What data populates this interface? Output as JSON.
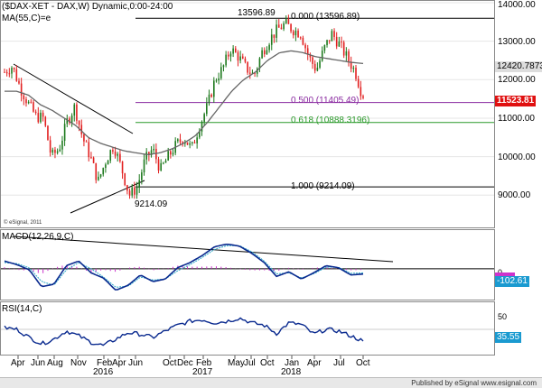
{
  "main": {
    "title": "($DAX-XET - DAX,W) Dynamic,0:00-24:00",
    "ma_label": "MA(55,C)=e",
    "watermark": "© eSignal, 2011",
    "price_tag": "11523.81",
    "ma_tag": "12420.7873",
    "annotations": {
      "high": "13596.89",
      "low": "9214.09",
      "fib0": "0.000 (13596.89)",
      "fib50": "0.500 (11405.49)",
      "fib618": "0.618 (10888.3196)",
      "fib100": "1.000 (9214.09)"
    }
  },
  "macd": {
    "title": "MACD(12,26,9,C)",
    "tag_signal": "0",
    "tag_value": "-102.61",
    "zero_tick": "0"
  },
  "rsi": {
    "title": "RSI(14,C)",
    "tag_value": "35.55",
    "tick_50": "50"
  },
  "footer": "Published by eSignal  www.esignal.com",
  "colors": {
    "up": "#1e7a1e",
    "down": "#e22020",
    "ma": "#666666",
    "macd": "#0a2a8f",
    "signal": "#2aa7c8",
    "hist": "#cc33cc",
    "fib50": "#8a2aa0",
    "fib618": "#2a9a2a",
    "rsi": "#0a2a8f",
    "price_tag_bg": "#e01010",
    "ma_tag_bg": "#dddddd",
    "macd_tag_bg": "#1a9ad0",
    "signal_tag_bg": "#cc33cc",
    "rsi_tag_bg": "#1a9ad0"
  },
  "chart_data": {
    "type": "line",
    "title": "($DAX-XET - DAX,W) Dynamic,0:00-24:00",
    "y_ticks": [
      "14000.00",
      "13000.00",
      "12000.00",
      "11000.00",
      "10000.00",
      "9000.00"
    ],
    "x_ticks": [
      {
        "label": "Apr",
        "year": ""
      },
      {
        "label": "Jun",
        "year": ""
      },
      {
        "label": "Aug",
        "year": ""
      },
      {
        "label": "Nov",
        "year": ""
      },
      {
        "label": "Feb",
        "year": "2016"
      },
      {
        "label": "Apr",
        "year": ""
      },
      {
        "label": "Jun",
        "year": ""
      },
      {
        "label": "Oct",
        "year": ""
      },
      {
        "label": "Dec",
        "year": ""
      },
      {
        "label": "Feb",
        "year": "2017"
      },
      {
        "label": "May",
        "year": ""
      },
      {
        "label": "Jul",
        "year": ""
      },
      {
        "label": "Oct",
        "year": ""
      },
      {
        "label": "Jan",
        "year": "2018"
      },
      {
        "label": "Apr",
        "year": ""
      },
      {
        "label": "Jul",
        "year": ""
      },
      {
        "label": "Oct",
        "year": ""
      }
    ],
    "price_anchors": [
      12200,
      12350,
      11800,
      11400,
      11050,
      11000,
      10000,
      10200,
      10900,
      11300,
      10500,
      10000,
      9350,
      9900,
      10300,
      9700,
      9000,
      9200,
      9900,
      10200,
      9650,
      10000,
      10300,
      10500,
      10200,
      10800,
      11300,
      12000,
      12300,
      12800,
      12600,
      12300,
      12100,
      12700,
      13050,
      13300,
      13450,
      13300,
      13200,
      12600,
      12250,
      12800,
      13200,
      12900,
      12550,
      12200,
      11523.81
    ],
    "ma_anchors": [
      11700,
      11700,
      11600,
      11350,
      11200,
      11000,
      10800,
      10500,
      10350,
      10250,
      10150,
      10100,
      10050,
      10100,
      10200,
      10350,
      10550,
      10900,
      11300,
      11700,
      12000,
      12200,
      12500,
      12700,
      12750,
      12700,
      12600,
      12550,
      12500,
      12450,
      12420.79
    ],
    "fib_levels": [
      {
        "ratio": "0.000",
        "value": 13596.89
      },
      {
        "ratio": "0.500",
        "value": 11405.49
      },
      {
        "ratio": "0.618",
        "value": 10888.3196
      },
      {
        "ratio": "1.000",
        "value": 9214.09
      }
    ],
    "ylim": [
      8300,
      14000
    ],
    "macd": {
      "last": -102.61,
      "ylim": [
        -600,
        700
      ]
    },
    "rsi": {
      "last": 35.55,
      "ylim": [
        20,
        80
      ]
    }
  }
}
